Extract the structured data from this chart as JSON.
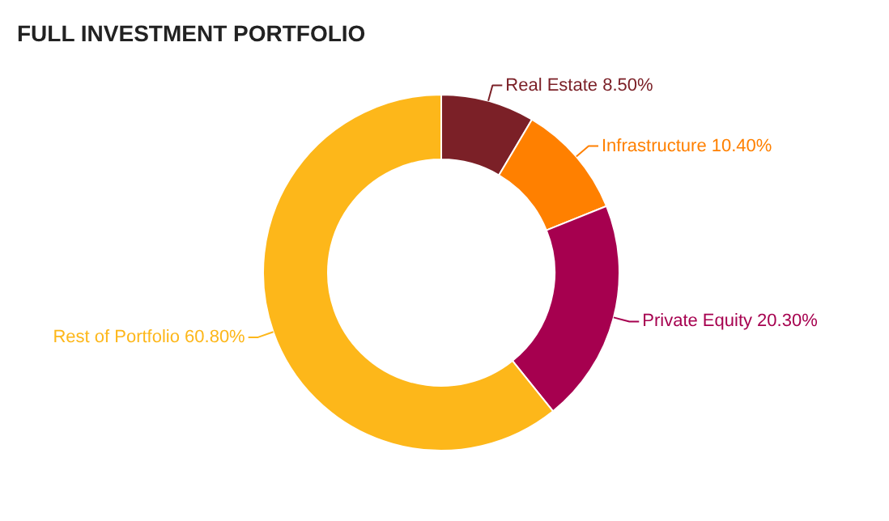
{
  "chart_data": {
    "type": "donut",
    "title": "FULL INVESTMENT PORTFOLIO",
    "categories": [
      "Real Estate",
      "Infrastructure",
      "Private Equity",
      "Rest of Portfolio"
    ],
    "values": [
      8.5,
      10.4,
      20.3,
      60.8
    ],
    "value_labels": [
      "8.50%",
      "10.40%",
      "20.30%",
      "60.80%"
    ],
    "colors": [
      "#7b2027",
      "#ff8000",
      "#a6004f",
      "#fdb71a"
    ]
  }
}
